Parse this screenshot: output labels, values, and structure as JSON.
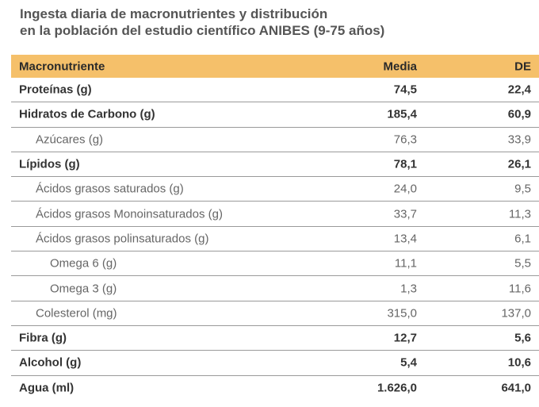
{
  "title": [
    "Ingesta diaria de macronutrientes y distribución",
    "en la población del estudio científico ANIBES (9-75 años)"
  ],
  "table": {
    "header": {
      "name": "Macronutriente",
      "media": "Media",
      "de": "DE"
    },
    "header_color": "#f5c06a",
    "rows": [
      {
        "name": "Proteínas (g)",
        "media": "74,5",
        "de": "22,4",
        "level": 0,
        "bold": true
      },
      {
        "name": "Hidratos de Carbono (g)",
        "media": "185,4",
        "de": "60,9",
        "level": 0,
        "bold": true
      },
      {
        "name": "Azúcares (g)",
        "media": "76,3",
        "de": "33,9",
        "level": 1,
        "bold": false
      },
      {
        "name": "Lípidos (g)",
        "media": "78,1",
        "de": "26,1",
        "level": 0,
        "bold": true
      },
      {
        "name": "Ácidos grasos saturados (g)",
        "media": "24,0",
        "de": "9,5",
        "level": 1,
        "bold": false
      },
      {
        "name": "Ácidos grasos Monoinsaturados (g)",
        "media": "33,7",
        "de": "11,3",
        "level": 1,
        "bold": false
      },
      {
        "name": "Ácidos grasos polinsaturados (g)",
        "media": "13,4",
        "de": "6,1",
        "level": 1,
        "bold": false
      },
      {
        "name": "Omega 6 (g)",
        "media": "11,1",
        "de": "5,5",
        "level": 2,
        "bold": false
      },
      {
        "name": "Omega 3 (g)",
        "media": "1,3",
        "de": "11,6",
        "level": 2,
        "bold": false
      },
      {
        "name": "Colesterol (mg)",
        "media": "315,0",
        "de": "137,0",
        "level": 1,
        "bold": false
      },
      {
        "name": "Fibra (g)",
        "media": "12,7",
        "de": "5,6",
        "level": 0,
        "bold": true
      },
      {
        "name": "Alcohol (g)",
        "media": "5,4",
        "de": "10,6",
        "level": 0,
        "bold": true
      },
      {
        "name": "Agua (ml)",
        "media": "1.626,0",
        "de": "641,0",
        "level": 0,
        "bold": true
      }
    ]
  }
}
